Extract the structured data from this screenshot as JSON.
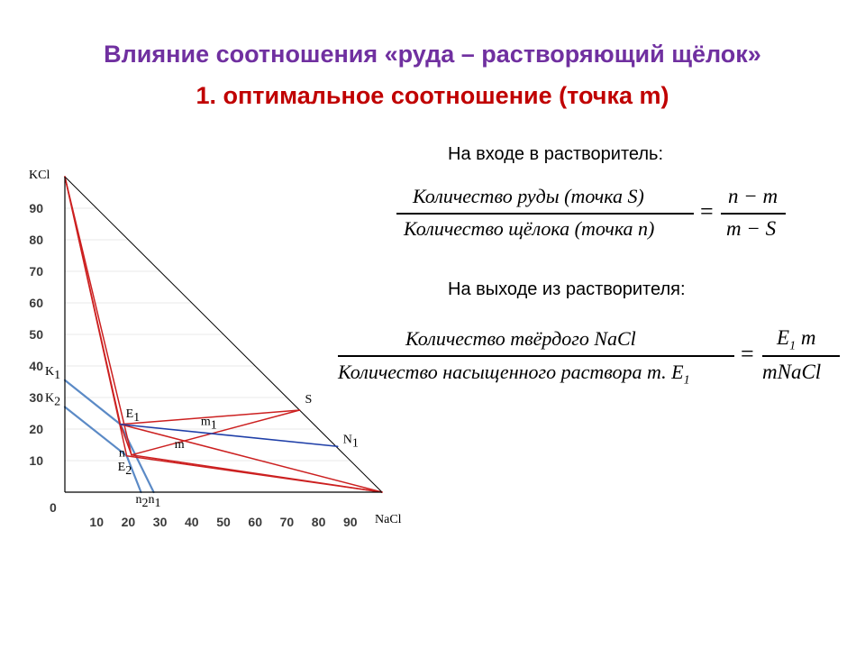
{
  "title_line1": "Влияние соотношения «руда – растворяющий щёлок»",
  "title_line2": "1. оптимальное соотношение (точка m)",
  "inlet": {
    "caption": "На входе в растворитель:",
    "lhs_num": "Количество руды (точка S)",
    "lhs_den": "Количество щёлока (точка n)",
    "eq": "=",
    "rhs_num": "n − m",
    "rhs_den": "m − S"
  },
  "outlet": {
    "caption": "На выходе из растворителя:",
    "lhs_num": "Количество твёрдого NaCl",
    "lhs_den_main": "Количество насыщенного раствора т. E",
    "lhs_den_sub": "1",
    "eq": "=",
    "rhs_num_main": "E",
    "rhs_num_sub": "1",
    "rhs_num_tail": " m",
    "rhs_den": "mNaCl"
  },
  "chart_data": {
    "type": "phase-diagram",
    "axes": {
      "x_label": "NaCl",
      "y_label": "KCl",
      "origin_label": "0",
      "x_ticks": [
        "10",
        "20",
        "30",
        "40",
        "50",
        "60",
        "70",
        "80",
        "90"
      ],
      "y_ticks": [
        "10",
        "20",
        "30",
        "40",
        "50",
        "60",
        "70",
        "80",
        "90"
      ],
      "xlim": [
        0,
        100
      ],
      "ylim": [
        0,
        100
      ]
    },
    "colors": {
      "axis": "#000000",
      "hypotenuse": "#000000",
      "solubility": "#5b8ac6",
      "tie_lines": "#cc2020",
      "line_E1N1": "#1f3fa8",
      "grid": "#e8e8e8"
    },
    "points": [
      {
        "id": "KCl",
        "x": 0,
        "y": 100,
        "label": ""
      },
      {
        "id": "NaCl",
        "x": 100,
        "y": 0,
        "label": ""
      },
      {
        "id": "K1",
        "x": 0,
        "y": 35.5,
        "label": "K",
        "sub": "1"
      },
      {
        "id": "K2",
        "x": 0,
        "y": 27,
        "label": "K",
        "sub": "2"
      },
      {
        "id": "E1",
        "x": 17.5,
        "y": 21.5,
        "label": "E",
        "sub": "1"
      },
      {
        "id": "E2",
        "x": 19.5,
        "y": 11.5,
        "label": "E",
        "sub": "2"
      },
      {
        "id": "n",
        "x": 21,
        "y": 11.8,
        "label": "n",
        "sub": ""
      },
      {
        "id": "n2",
        "x": 24,
        "y": 0,
        "label": "n",
        "sub": "2"
      },
      {
        "id": "n1",
        "x": 28,
        "y": 0,
        "label": "n",
        "sub": "1"
      },
      {
        "id": "m",
        "x": 38,
        "y": 17.5,
        "label": "m",
        "sub": ""
      },
      {
        "id": "m1",
        "x": 44,
        "y": 19,
        "label": "m",
        "sub": "1"
      },
      {
        "id": "S",
        "x": 74,
        "y": 26,
        "label": "S",
        "sub": ""
      },
      {
        "id": "N1",
        "x": 86,
        "y": 14.5,
        "label": "N",
        "sub": "1"
      }
    ],
    "lines": [
      {
        "from": "KCl",
        "to": "NaCl",
        "style": "hypotenuse"
      },
      {
        "from": "K1",
        "to": "E1",
        "style": "solubility"
      },
      {
        "from": "E1",
        "to": "n1",
        "style": "solubility"
      },
      {
        "from": "K2",
        "to": "E2",
        "style": "solubility"
      },
      {
        "from": "E2",
        "to": "n2",
        "style": "solubility"
      },
      {
        "from": "KCl",
        "to": "E1",
        "style": "tie_lines"
      },
      {
        "from": "KCl",
        "to": "E2",
        "style": "tie_lines"
      },
      {
        "from": "KCl",
        "to": "n",
        "style": "tie_lines"
      },
      {
        "from": "E1",
        "to": "NaCl",
        "style": "tie_lines"
      },
      {
        "from": "E2",
        "to": "NaCl",
        "style": "tie_lines"
      },
      {
        "from": "n",
        "to": "NaCl",
        "style": "tie_lines"
      },
      {
        "from": "n",
        "to": "S",
        "style": "tie_lines"
      },
      {
        "from": "E1",
        "to": "S",
        "style": "tie_lines"
      },
      {
        "from": "E1",
        "to": "n",
        "style": "tie_lines"
      },
      {
        "from": "E1",
        "to": "N1",
        "style": "line_E1N1"
      }
    ]
  }
}
